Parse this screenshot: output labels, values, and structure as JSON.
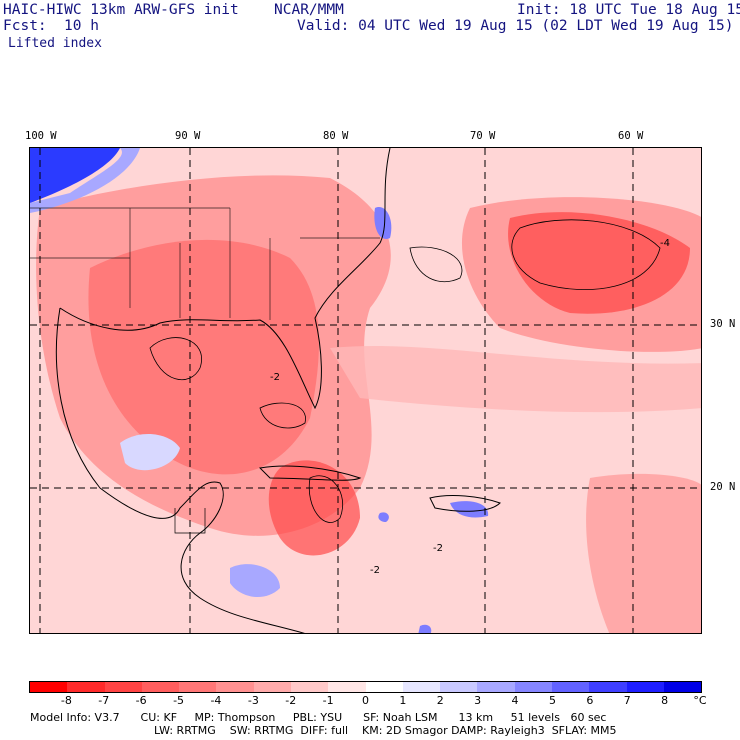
{
  "header": {
    "model": "HAIC-HIWC 13km ARW-GFS init",
    "org": "NCAR/MMM",
    "init": "Init: 18 UTC Tue 18 Aug 15",
    "fcst_label": "Fcst:",
    "fcst_value": "10 h",
    "valid": "Valid: 04 UTC Wed 19 Aug 15 (02 LDT Wed 19 Aug 15)",
    "field": "Lifted index"
  },
  "map": {
    "longitude_labels": [
      "100 W",
      "90 W",
      "80 W",
      "70 W",
      "60 W"
    ],
    "latitude_labels": [
      "30 N",
      "20 N"
    ],
    "contour_labels": [
      "-2",
      "-2",
      "-2",
      "-4"
    ],
    "colors": {
      "strong_neg": "#ff3b3b",
      "mid_neg": "#ff6e6e",
      "weak_neg": "#ff9e9e",
      "near_zero": "#ffd6d6",
      "pos_weak": "#c9c9ff",
      "pos_strong": "#2b3bff"
    }
  },
  "colorbar": {
    "labels": [
      "-8",
      "-7",
      "-6",
      "-5",
      "-4",
      "-3",
      "-2",
      "-1",
      "0",
      "1",
      "2",
      "3",
      "4",
      "5",
      "6",
      "7",
      "8",
      "°C"
    ],
    "colors": [
      "#ff0000",
      "#ff2a2a",
      "#ff4444",
      "#ff5e5e",
      "#ff7777",
      "#ff9191",
      "#ffabab",
      "#ffc9c9",
      "#ffe6e6",
      "#ffffff",
      "#e6e6ff",
      "#c9c9ff",
      "#a8a8ff",
      "#8686ff",
      "#6262ff",
      "#3f3fff",
      "#1e1eff",
      "#0000e6"
    ]
  },
  "model_info": {
    "line1": "Model Info: V3.7      CU: KF     MP: Thompson     PBL: YSU      SF: Noah LSM      13 km     51 levels   60 sec",
    "line2": "LW: RRTMG    SW: RRTMG  DIFF: full    KM: 2D Smagor DAMP: Rayleigh3  SFLAY: MM5"
  }
}
